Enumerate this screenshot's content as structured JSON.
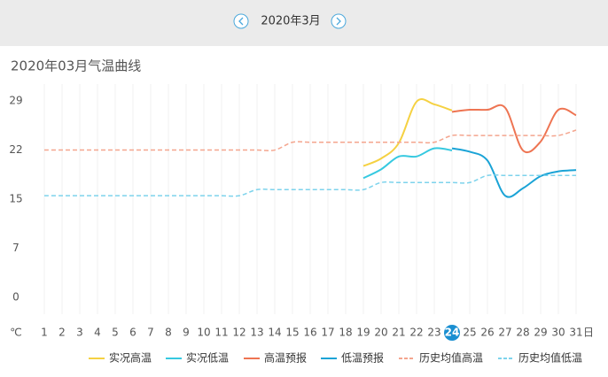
{
  "header": {
    "month": "2020年3月"
  },
  "chart_data": {
    "type": "line",
    "title": "2020年03月气温曲线",
    "y_unit": "℃",
    "x_unit": "日",
    "categories": [
      "1",
      "2",
      "3",
      "4",
      "5",
      "6",
      "7",
      "8",
      "9",
      "10",
      "11",
      "12",
      "13",
      "14",
      "15",
      "16",
      "17",
      "18",
      "19",
      "20",
      "21",
      "22",
      "23",
      "24",
      "25",
      "26",
      "27",
      "28",
      "29",
      "30",
      "31"
    ],
    "highlight_index": 23,
    "ylim": [
      -2.5,
      31.5
    ],
    "yticks": [
      0,
      {
        "value": 7.25,
        "label": "7"
      },
      {
        "value": 14.5,
        "label": "15"
      },
      {
        "value": 21.75,
        "label": "22"
      },
      29
    ],
    "series": [
      {
        "name": "实况高温",
        "color": "#f5d142",
        "dashed": false,
        "values": [
          null,
          null,
          null,
          null,
          null,
          null,
          null,
          null,
          null,
          null,
          null,
          null,
          null,
          null,
          null,
          null,
          null,
          null,
          19.4,
          20.5,
          22.8,
          28.9,
          28.5,
          27.6,
          null,
          null,
          null,
          null,
          null,
          null,
          null
        ]
      },
      {
        "name": "实况低温",
        "color": "#36c9e0",
        "dashed": false,
        "values": [
          null,
          null,
          null,
          null,
          null,
          null,
          null,
          null,
          null,
          null,
          null,
          null,
          null,
          null,
          null,
          null,
          null,
          null,
          17.6,
          18.9,
          20.8,
          20.8,
          22.0,
          21.7,
          null,
          null,
          null,
          null,
          null,
          null,
          null
        ]
      },
      {
        "name": "高温预报",
        "color": "#ee7452",
        "dashed": false,
        "values": [
          null,
          null,
          null,
          null,
          null,
          null,
          null,
          null,
          null,
          null,
          null,
          null,
          null,
          null,
          null,
          null,
          null,
          null,
          null,
          null,
          null,
          null,
          null,
          27.4,
          27.7,
          27.7,
          28.0,
          21.7,
          23.0,
          27.7,
          26.9
        ]
      },
      {
        "name": "低温预报",
        "color": "#1aa3d6",
        "dashed": false,
        "values": [
          null,
          null,
          null,
          null,
          null,
          null,
          null,
          null,
          null,
          null,
          null,
          null,
          null,
          null,
          null,
          null,
          null,
          null,
          null,
          null,
          null,
          null,
          null,
          22.0,
          21.5,
          20.2,
          15.0,
          16.1,
          17.9,
          18.6,
          18.8
        ]
      },
      {
        "name": "历史均值高温",
        "color": "#f4a58e",
        "dashed": true,
        "values": [
          21.75,
          21.75,
          21.75,
          21.75,
          21.75,
          21.75,
          21.75,
          21.75,
          21.75,
          21.75,
          21.75,
          21.75,
          21.75,
          21.75,
          22.9,
          22.9,
          22.9,
          22.9,
          22.9,
          22.9,
          22.9,
          22.9,
          22.9,
          23.9,
          23.9,
          23.9,
          23.9,
          23.9,
          23.9,
          23.9,
          24.7
        ]
      },
      {
        "name": "历史均值低温",
        "color": "#7dd3ec",
        "dashed": true,
        "values": [
          15.0,
          15.0,
          15.0,
          15.0,
          15.0,
          15.0,
          15.0,
          15.0,
          15.0,
          15.0,
          15.0,
          15.0,
          15.9,
          15.9,
          15.9,
          15.9,
          15.9,
          15.9,
          15.9,
          16.95,
          16.95,
          16.95,
          16.95,
          16.95,
          16.95,
          18.0,
          18.0,
          18.0,
          18.0,
          18.0,
          18.0
        ]
      }
    ]
  }
}
